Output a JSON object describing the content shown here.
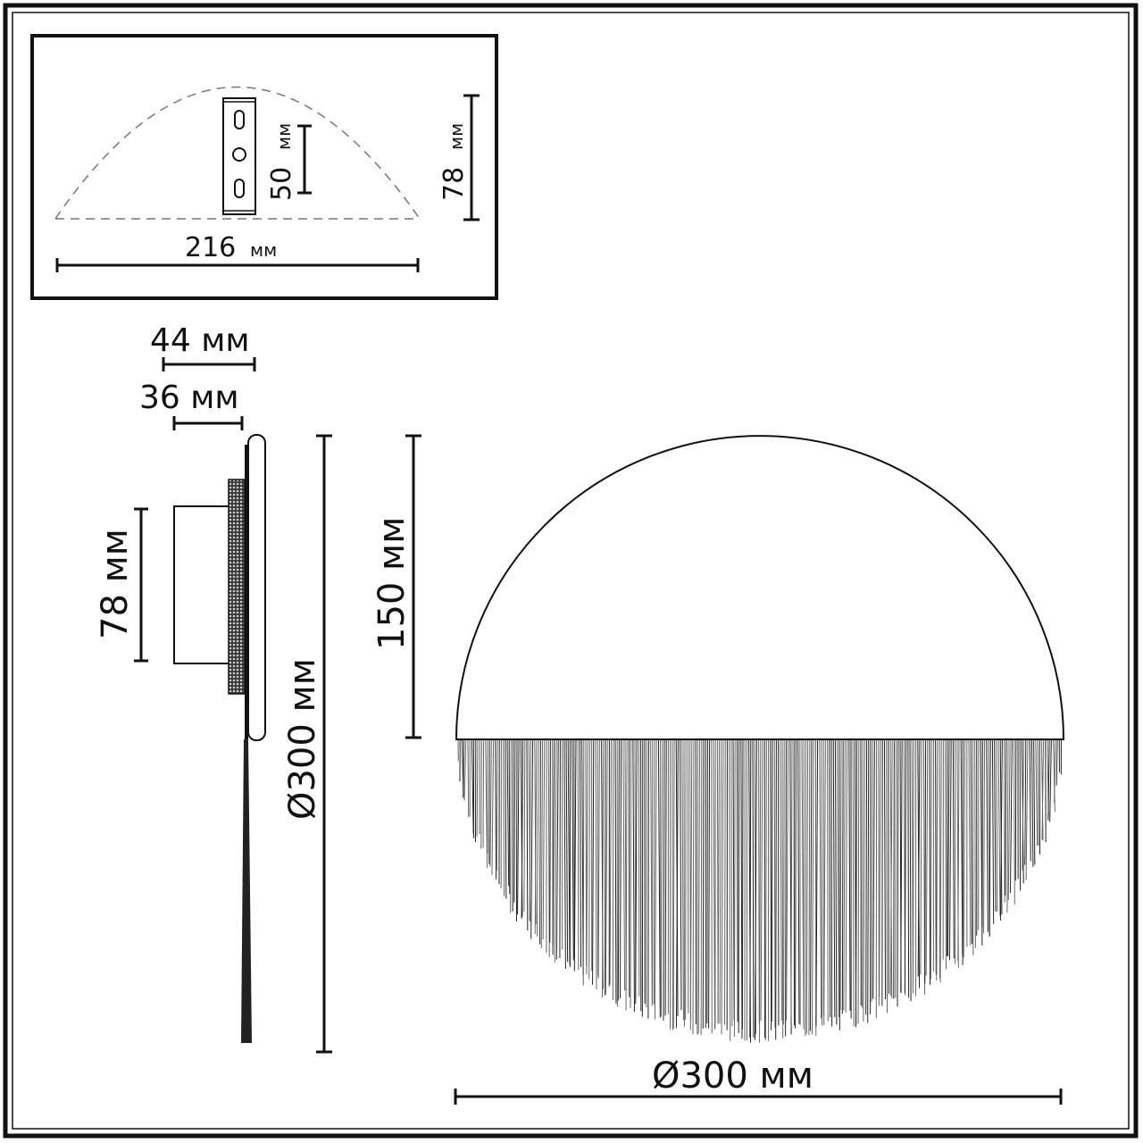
{
  "inset": {
    "width_label": "216",
    "width_unit": "мм",
    "height_label": "78",
    "height_unit": "мм",
    "bracket_label": "50",
    "bracket_unit": "мм"
  },
  "side_view": {
    "depth_total": "44 мм",
    "depth_body": "36 мм",
    "base_height": "78 мм",
    "overall_height": "Ø300 мм",
    "half_height": "150 мм"
  },
  "front_view": {
    "diameter": "Ø300 мм"
  },
  "colors": {
    "line": "#111111",
    "background": "#ffffff"
  }
}
